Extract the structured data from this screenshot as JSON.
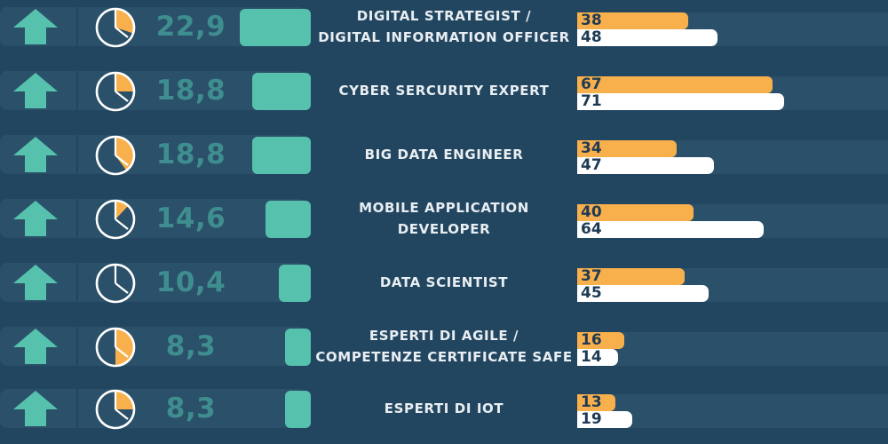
{
  "colors": {
    "background": "#234660",
    "strip": "#2b5069",
    "arrow": "#56c1ad",
    "vbar": "#56c1ad",
    "pct_text": "#3f8e8f",
    "orange": "#f8b04c",
    "white": "#ffffff",
    "value_text": "#1f3a55"
  },
  "chart_data": {
    "type": "bar",
    "series": [
      {
        "values": [
          22.9,
          18.8,
          18.8,
          14.6,
          10.4,
          8.3,
          8.3
        ]
      },
      {
        "values": [
          38,
          67,
          34,
          40,
          37,
          16,
          13
        ]
      },
      {
        "values": [
          48,
          71,
          47,
          64,
          45,
          14,
          19
        ]
      }
    ],
    "clock_fraction": [
      0.3,
      0.25,
      0.4,
      0.12,
      0,
      0.5,
      0.25
    ],
    "percentages": [
      "22,9",
      "18,8",
      "18,8",
      "14,6",
      "10,4",
      "8,3",
      "8,3"
    ],
    "categories": [
      [
        "DIGITAL STRATEGIST /",
        "DIGITAL INFORMATION OFFICER"
      ],
      [
        "CYBER SERCURITY EXPERT"
      ],
      [
        "BIG DATA ENGINEER"
      ],
      [
        "MOBILE APPLICATION",
        "DEVELOPER"
      ],
      [
        "DATA SCIENTIST"
      ],
      [
        "ESPERTI DI AGILE /",
        "COMPETENZE CERTIFICATE SAFE"
      ],
      [
        "ESPERTI DI IOT"
      ]
    ],
    "icons": [
      "arrow-up-icon",
      "clock-icon"
    ]
  }
}
